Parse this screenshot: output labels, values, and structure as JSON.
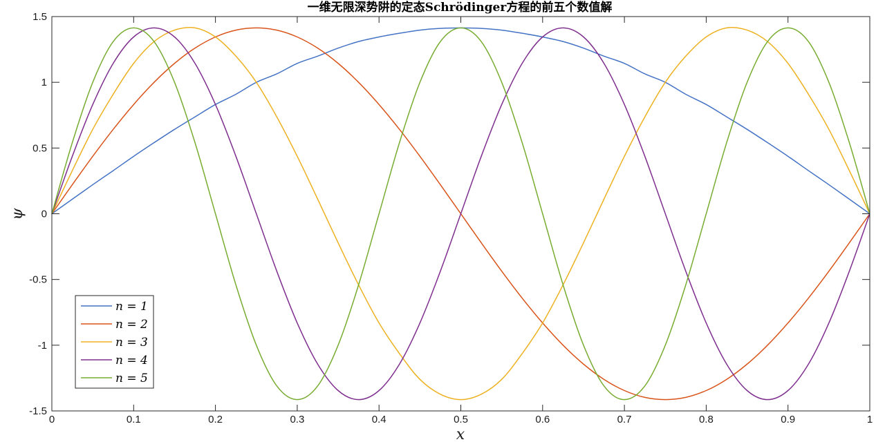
{
  "chart_data": {
    "type": "line",
    "title": "一维无限深势阱的定态Schrödinger方程的前五个数值解",
    "xlabel": "x",
    "ylabel": "ψ",
    "xlim": [
      0,
      1
    ],
    "ylim": [
      -1.5,
      1.5
    ],
    "x_ticks": [
      "0",
      "0.1",
      "0.2",
      "0.3",
      "0.4",
      "0.5",
      "0.6",
      "0.7",
      "0.8",
      "0.9",
      "1"
    ],
    "y_ticks": [
      "-1.5",
      "-1",
      "-0.5",
      "0",
      "0.5",
      "1",
      "1.5"
    ],
    "grid": false,
    "legend_position": "bottom-left",
    "x": [
      0.0,
      0.025,
      0.05,
      0.075,
      0.1,
      0.125,
      0.15,
      0.175,
      0.2,
      0.225,
      0.25,
      0.275,
      0.3,
      0.325,
      0.35,
      0.375,
      0.4,
      0.425,
      0.45,
      0.475,
      0.5,
      0.525,
      0.55,
      0.575,
      0.6,
      0.625,
      0.65,
      0.675,
      0.7,
      0.725,
      0.75,
      0.775,
      0.8,
      0.825,
      0.85,
      0.875,
      0.9,
      0.925,
      0.95,
      0.975,
      1.0
    ],
    "series": [
      {
        "name": "n = 1",
        "color": "#4472c4",
        "values": [
          0.0,
          0.111,
          0.221,
          0.328,
          0.437,
          0.541,
          0.642,
          0.737,
          0.831,
          0.909,
          1.0,
          1.064,
          1.144,
          1.199,
          1.26,
          1.31,
          1.345,
          1.373,
          1.397,
          1.41,
          1.414,
          1.41,
          1.397,
          1.373,
          1.345,
          1.31,
          1.26,
          1.199,
          1.144,
          1.064,
          1.0,
          0.909,
          0.831,
          0.737,
          0.642,
          0.541,
          0.437,
          0.328,
          0.221,
          0.111,
          0.0
        ]
      },
      {
        "name": "n = 2",
        "color": "#d95319",
        "values": [
          0.0,
          0.221,
          0.437,
          0.642,
          0.831,
          1.0,
          1.144,
          1.26,
          1.345,
          1.397,
          1.414,
          1.397,
          1.345,
          1.26,
          1.144,
          1.0,
          0.831,
          0.642,
          0.437,
          0.221,
          0.0,
          -0.221,
          -0.437,
          -0.642,
          -0.831,
          -1.0,
          -1.144,
          -1.26,
          -1.345,
          -1.397,
          -1.414,
          -1.397,
          -1.345,
          -1.26,
          -1.144,
          -1.0,
          -0.831,
          -0.642,
          -0.437,
          -0.221,
          0.0
        ]
      },
      {
        "name": "n = 3",
        "color": "#edb120",
        "values": [
          0.0,
          0.328,
          0.642,
          0.909,
          1.144,
          1.31,
          1.397,
          1.414,
          1.345,
          1.199,
          1.0,
          0.737,
          0.437,
          0.111,
          -0.221,
          -0.541,
          -0.831,
          -1.064,
          -1.26,
          -1.373,
          -1.414,
          -1.373,
          -1.26,
          -1.064,
          -0.831,
          -0.541,
          -0.221,
          0.111,
          0.437,
          0.737,
          1.0,
          1.199,
          1.345,
          1.414,
          1.397,
          1.31,
          1.144,
          0.909,
          0.642,
          0.328,
          0.0
        ]
      },
      {
        "name": "n = 4",
        "color": "#7e2f8e",
        "values": [
          0.0,
          0.437,
          0.831,
          1.144,
          1.345,
          1.414,
          1.345,
          1.144,
          0.831,
          0.437,
          0.0,
          -0.437,
          -0.831,
          -1.144,
          -1.345,
          -1.414,
          -1.345,
          -1.144,
          -0.831,
          -0.437,
          0.0,
          0.437,
          0.831,
          1.144,
          1.345,
          1.414,
          1.345,
          1.144,
          0.831,
          0.437,
          0.0,
          -0.437,
          -0.831,
          -1.144,
          -1.345,
          -1.414,
          -1.345,
          -1.144,
          -0.831,
          -0.437,
          0.0
        ]
      },
      {
        "name": "n = 5",
        "color": "#77ac30",
        "values": [
          0.0,
          0.541,
          1.0,
          1.31,
          1.414,
          1.31,
          1.0,
          0.541,
          0.0,
          -0.541,
          -1.0,
          -1.31,
          -1.414,
          -1.31,
          -1.0,
          -0.541,
          0.0,
          0.541,
          1.0,
          1.31,
          1.414,
          1.31,
          1.0,
          0.541,
          0.0,
          -0.541,
          -1.0,
          -1.31,
          -1.414,
          -1.31,
          -1.0,
          -0.541,
          0.0,
          0.541,
          1.0,
          1.31,
          1.414,
          1.31,
          1.0,
          0.541,
          0.0
        ]
      }
    ]
  }
}
